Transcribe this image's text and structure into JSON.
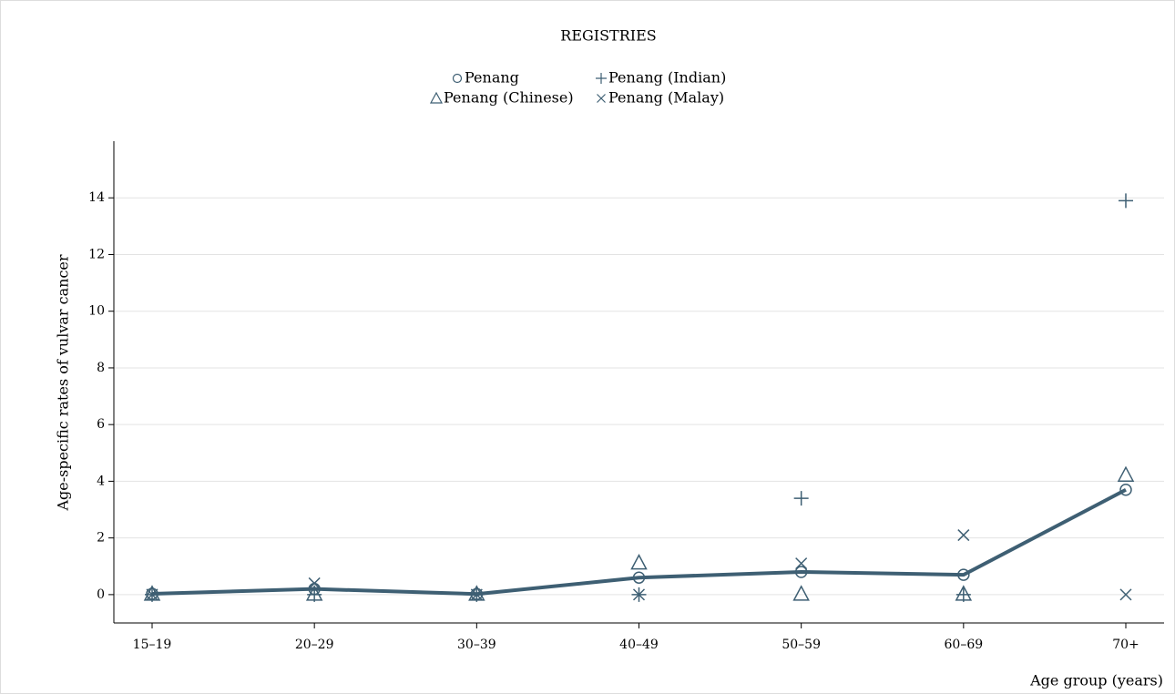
{
  "chart_data": {
    "type": "line",
    "legend_title": "REGISTRIES",
    "y_label": "Age-specific rates of vulvar cancer",
    "x_label": "Age group (years)",
    "categories": [
      "15–19",
      "20–29",
      "30–39",
      "40–49",
      "50–59",
      "60–69",
      "70+"
    ],
    "ylim": [
      -1,
      16
    ],
    "yticks": [
      0,
      2,
      4,
      6,
      8,
      10,
      12,
      14
    ],
    "grid": true,
    "series": [
      {
        "name": "Penang",
        "color": "#3e5f73",
        "marker": "circle",
        "line": true,
        "values": [
          0.03,
          0.2,
          0.02,
          0.6,
          0.8,
          0.7,
          3.7
        ]
      },
      {
        "name": "Penang (Indian)",
        "color": "#3e5f73",
        "marker": "plus",
        "line": false,
        "values": [
          0,
          0,
          0,
          0,
          3.4,
          0,
          13.9
        ]
      },
      {
        "name": "Penang (Chinese)",
        "color": "#3e5f73",
        "marker": "triangle",
        "line": false,
        "values": [
          0,
          0,
          0,
          1.1,
          0,
          0,
          4.2
        ]
      },
      {
        "name": "Penang (Malay)",
        "color": "#3e5f73",
        "marker": "x",
        "line": false,
        "values": [
          0,
          0.4,
          0,
          0,
          1.1,
          2.1,
          0
        ]
      }
    ]
  }
}
